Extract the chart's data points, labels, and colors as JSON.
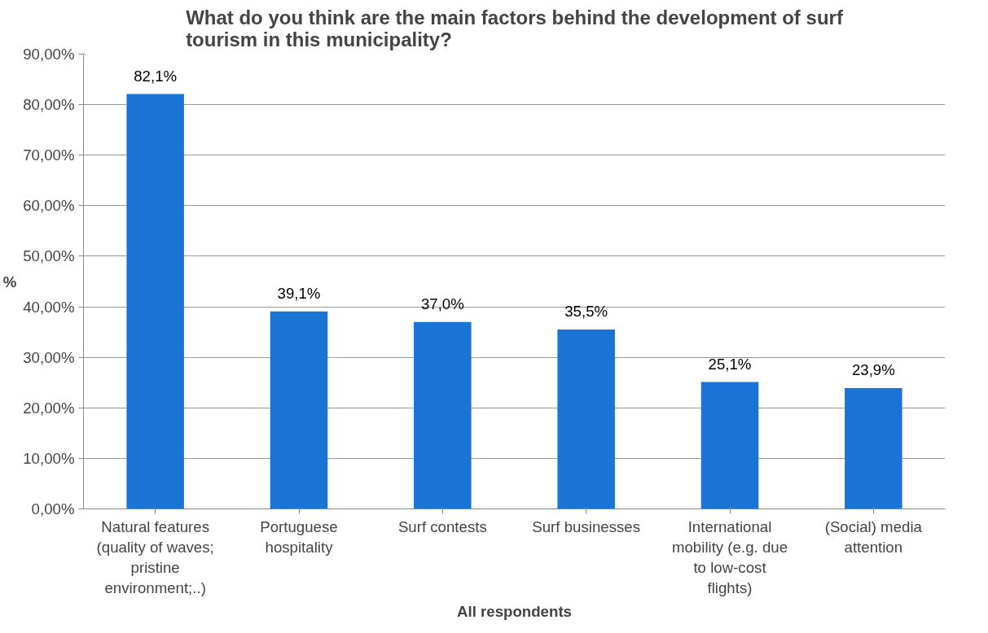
{
  "chart_data": {
    "type": "bar",
    "title": "What do you think are the main factors behind the development of surf tourism in this municipality?",
    "xlabel": "All respondents",
    "ylabel": "%",
    "categories": [
      "Natural features (quality of waves; pristine environment;..)",
      "Portuguese hospitality",
      "Surf contests",
      "Surf businesses",
      "International mobility (e.g. due to low-cost flights)",
      "(Social) media attention"
    ],
    "values": [
      82.1,
      39.1,
      37.0,
      35.5,
      25.1,
      23.9
    ],
    "value_labels": [
      "82,1%",
      "39,1%",
      "37,0%",
      "35,5%",
      "25,1%",
      "23,9%"
    ],
    "color": "#1a74d6",
    "ylim": [
      0,
      90
    ],
    "yticks": [
      {
        "value": 0,
        "label": "0,00%"
      },
      {
        "value": 10,
        "label": "10,00%"
      },
      {
        "value": 20,
        "label": "20,00%"
      },
      {
        "value": 30,
        "label": "30,00%"
      },
      {
        "value": 40,
        "label": "40,00%"
      },
      {
        "value": 50,
        "label": "50,00%"
      },
      {
        "value": 60,
        "label": "60,00%"
      },
      {
        "value": 70,
        "label": "70,00%"
      },
      {
        "value": 80,
        "label": "80,00%"
      },
      {
        "value": 90,
        "label": "90,00%"
      }
    ],
    "grid": "y"
  }
}
